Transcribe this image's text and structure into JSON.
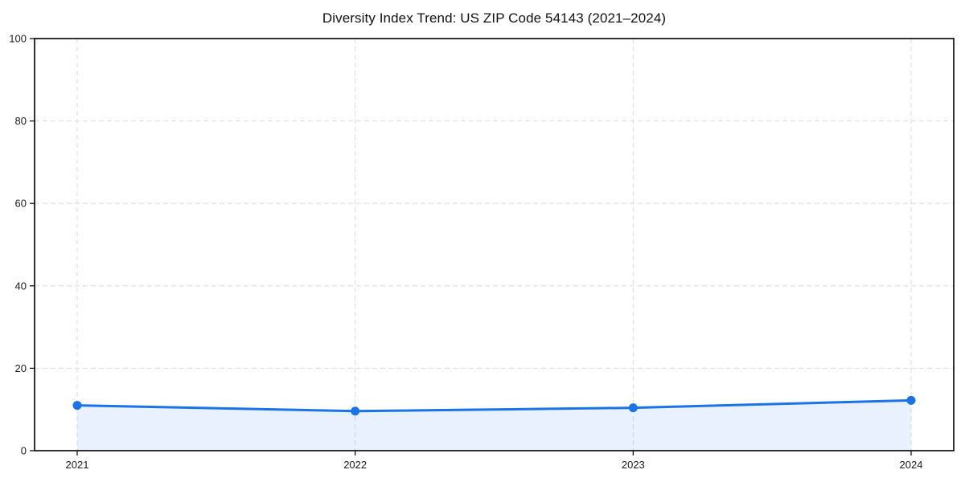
{
  "page": {
    "background_color": "#ffffff"
  },
  "chart_data": {
    "type": "area",
    "title": "Diversity Index Trend: US ZIP Code 54143 (2021–2024)",
    "categories": [
      "2021",
      "2022",
      "2023",
      "2024"
    ],
    "series": [
      {
        "name": "Diversity Index",
        "values": [
          11.0,
          9.6,
          10.4,
          12.2
        ]
      }
    ],
    "xlabel": "",
    "ylabel": "",
    "ylim": [
      0,
      100
    ],
    "yticks": [
      0,
      20,
      40,
      60,
      80,
      100
    ],
    "grid": true,
    "grid_style": "dashed",
    "legend_position": "none",
    "line_color": "#1a73e8",
    "marker": "circle",
    "fill_color": "#1a73e8",
    "fill_opacity": 0.1,
    "grid_color": "#dcdcdc",
    "axis_color": "#000000",
    "text_color": "#1a1a1a"
  }
}
